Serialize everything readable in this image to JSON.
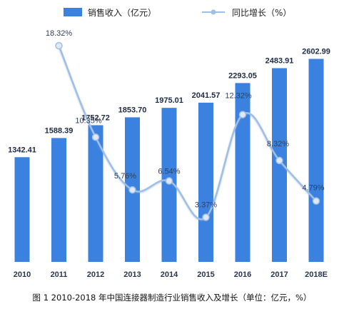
{
  "chart_data": {
    "type": "bar",
    "caption": "图 1 2010-2018 年中国连接器制造行业销售收入及增长（单位：亿元，%）",
    "categories": [
      "2010",
      "2011",
      "2012",
      "2013",
      "2014",
      "2015",
      "2016",
      "2017",
      "2018E"
    ],
    "series": [
      {
        "name": "销售收入（亿元）",
        "type": "bar",
        "color": "#3b82e0",
        "values": [
          1342.41,
          1588.39,
          1752.72,
          1853.7,
          1975.01,
          2041.57,
          2293.05,
          2483.91,
          2602.99
        ],
        "labels": [
          "1342.41",
          "1588.39",
          "1752.72",
          "1853.70",
          "1975.01",
          "2041.57",
          "2293.05",
          "2483.91",
          "2602.99"
        ]
      },
      {
        "name": "同比增长（%）",
        "type": "line",
        "color": "#9fbfe6",
        "values": [
          null,
          18.32,
          10.35,
          5.76,
          6.54,
          3.37,
          12.32,
          8.32,
          4.79
        ],
        "labels": [
          "",
          "18.32%",
          "10.35%",
          "5.76%",
          "6.54%",
          "3.37%",
          "12.32%",
          "8.32%",
          "4.79%"
        ]
      }
    ],
    "legend": {
      "position": "top"
    },
    "grid": false
  }
}
